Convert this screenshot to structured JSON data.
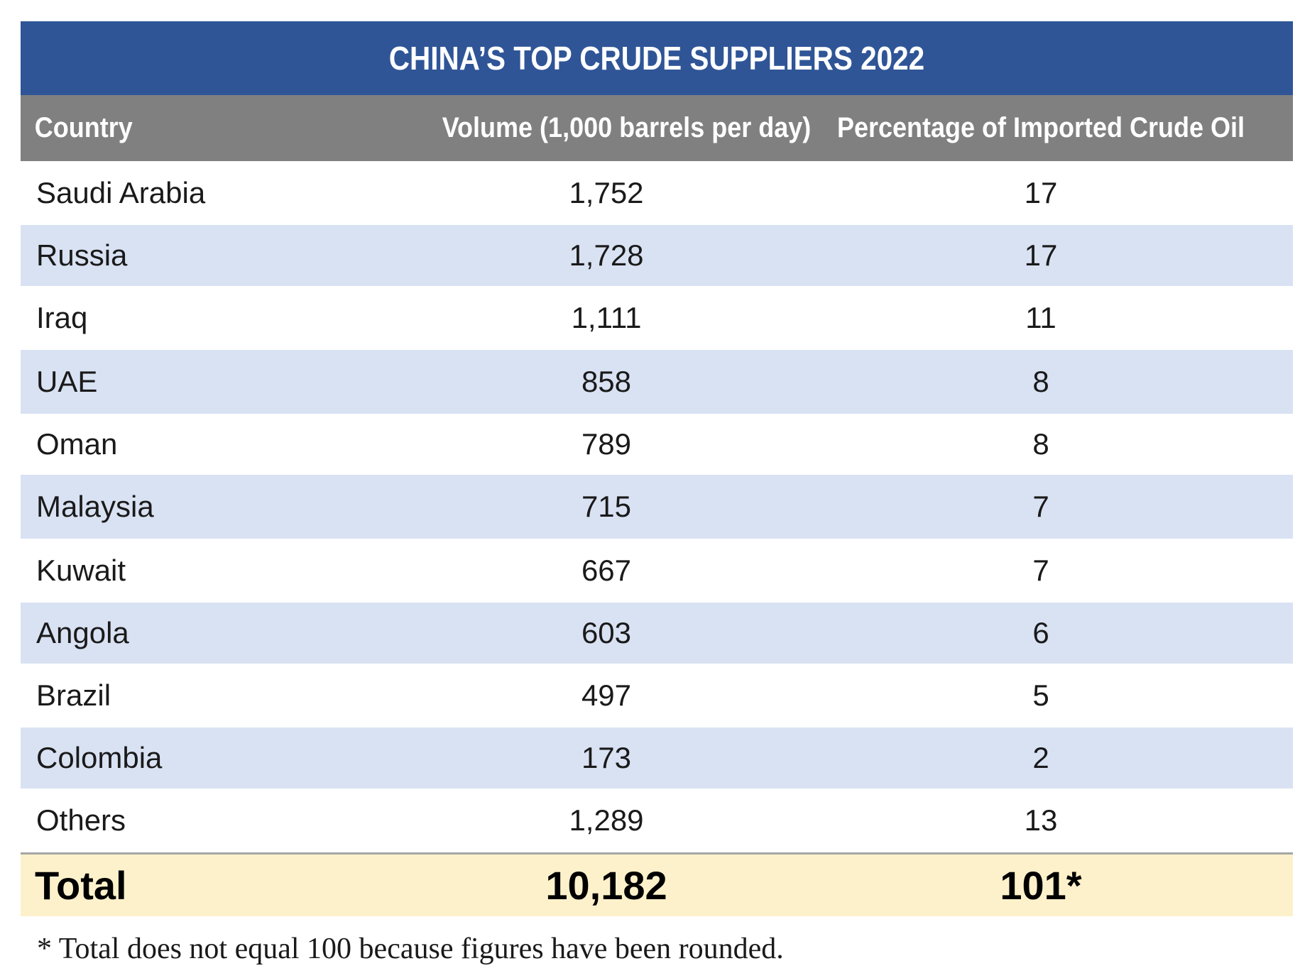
{
  "chart_data": {
    "type": "table",
    "title": "CHINA’S TOP CRUDE SUPPLIERS 2022",
    "columns": [
      "Country",
      "Volume (1,000 barrels per day)",
      "Percentage of Imported Crude Oil"
    ],
    "rows": [
      {
        "country": "Saudi Arabia",
        "volume": "1,752",
        "percentage": "17"
      },
      {
        "country": "Russia",
        "volume": "1,728",
        "percentage": "17"
      },
      {
        "country": "Iraq",
        "volume": "1,111",
        "percentage": "11"
      },
      {
        "country": "UAE",
        "volume": "858",
        "percentage": "8"
      },
      {
        "country": "Oman",
        "volume": "789",
        "percentage": "8"
      },
      {
        "country": "Malaysia",
        "volume": "715",
        "percentage": "7"
      },
      {
        "country": "Kuwait",
        "volume": "667",
        "percentage": "7"
      },
      {
        "country": "Angola",
        "volume": "603",
        "percentage": "6"
      },
      {
        "country": "Brazil",
        "volume": "497",
        "percentage": "5"
      },
      {
        "country": "Colombia",
        "volume": "173",
        "percentage": "2"
      },
      {
        "country": "Others",
        "volume": "1,289",
        "percentage": "13"
      }
    ],
    "total": {
      "label": "Total",
      "volume": "10,182",
      "percentage": "101*"
    },
    "footnote": "* Total does not equal 100 because figures have been rounded."
  },
  "colors": {
    "title_background": "#2f5597",
    "header_background": "#808080",
    "alternate_row": "#d9e2f3",
    "total_row": "#fdf1cb"
  }
}
